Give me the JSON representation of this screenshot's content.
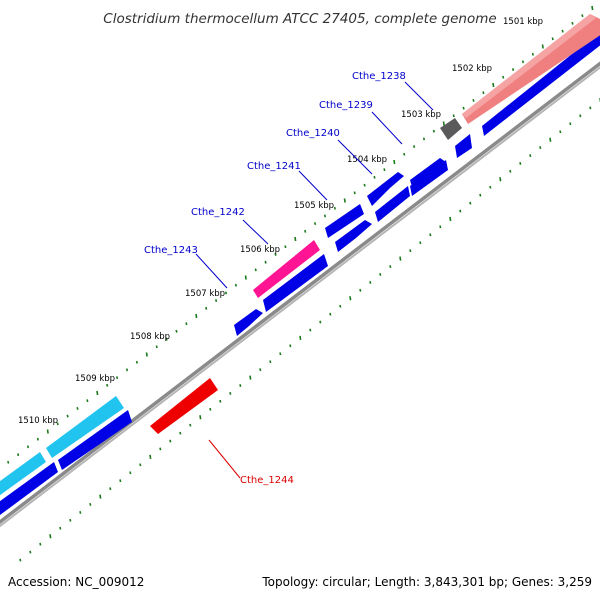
{
  "title": "Clostridium thermocellum ATCC 27405, complete genome",
  "footer": {
    "accession": "Accession: NC_009012",
    "summary": "Topology: circular; Length: 3,843,301 bp; Genes: 3,259"
  },
  "colors": {
    "backbone": "#8a8a8a",
    "cds": "#0000e6",
    "tick": "#1a7a1a",
    "label_blue": "#0000cc",
    "label_red": "#dd0000",
    "salmon": "#f08080",
    "gray_feature": "#5a5a5a",
    "magenta": "#ff1493",
    "cyan": "#20c4ef",
    "red_feature": "#ee0000"
  },
  "kbp_labels": [
    {
      "text": "1501 kbp"
    },
    {
      "text": "1502 kbp"
    },
    {
      "text": "1503 kbp"
    },
    {
      "text": "1504 kbp"
    },
    {
      "text": "1505 kbp"
    },
    {
      "text": "1506 kbp"
    },
    {
      "text": "1507 kbp"
    },
    {
      "text": "1508 kbp"
    },
    {
      "text": "1509 kbp"
    },
    {
      "text": "1510 kbp"
    }
  ],
  "gene_labels": [
    {
      "text": "Cthe_1238",
      "color": "label_blue"
    },
    {
      "text": "Cthe_1239",
      "color": "label_blue"
    },
    {
      "text": "Cthe_1240",
      "color": "label_blue"
    },
    {
      "text": "Cthe_1241",
      "color": "label_blue"
    },
    {
      "text": "Cthe_1242",
      "color": "label_blue"
    },
    {
      "text": "Cthe_1243",
      "color": "label_blue"
    },
    {
      "text": "Cthe_1244",
      "color": "label_red"
    }
  ]
}
